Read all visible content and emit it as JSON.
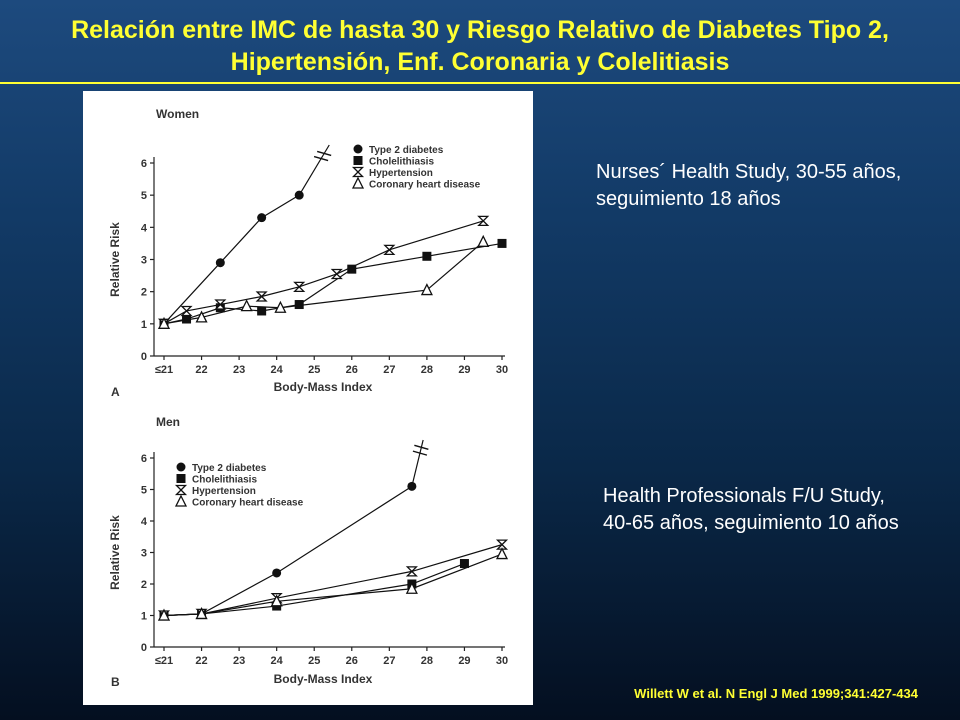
{
  "slide": {
    "title_line1": "Relación entre IMC de hasta 30 y Riesgo Relativo de Diabetes Tipo 2,",
    "title_line2": "Hipertensión, Enf. Coronaria y Colelitiasis",
    "note_women": "Nurses´ Health Study, 30-55 años, seguimiento 18 años",
    "note_men": "Health Professionals F/U Study, 40-65 años, seguimiento 10 años",
    "citation": "Willett W et al. N Engl J Med 1999;341:427-434",
    "colors": {
      "title": "#ffff33",
      "background_top": "#1d4a7e",
      "background_bottom": "#040f20",
      "text": "#ffffff"
    }
  },
  "chart_data": [
    {
      "type": "line",
      "panel": "A",
      "title": "Women",
      "xlabel": "Body-Mass Index",
      "ylabel": "Relative Risk",
      "x_ticks": [
        "≤21",
        "22",
        "23",
        "24",
        "25",
        "26",
        "27",
        "28",
        "29",
        "30"
      ],
      "y_ticks": [
        "0",
        "1",
        "2",
        "3",
        "4",
        "5",
        "6"
      ],
      "ylim": [
        0,
        6
      ],
      "legend_position": "top-right",
      "series": [
        {
          "name": "Type 2 diabetes",
          "marker": "circle",
          "x": [
            21,
            22.5,
            23.6,
            24.6
          ],
          "y": [
            1,
            2.9,
            4.3,
            5.0
          ],
          "break_to_x": 25.4
        },
        {
          "name": "Cholelithiasis",
          "marker": "square",
          "x": [
            21,
            21.6,
            22.5,
            23.6,
            24.6,
            26,
            28,
            30
          ],
          "y": [
            1,
            1.15,
            1.5,
            1.4,
            1.6,
            2.7,
            3.1,
            3.5
          ]
        },
        {
          "name": "Hypertension",
          "marker": "hourglass",
          "x": [
            21,
            21.6,
            22.5,
            23.6,
            24.6,
            25.6,
            27,
            29.5
          ],
          "y": [
            1,
            1.4,
            1.6,
            1.85,
            2.15,
            2.55,
            3.3,
            4.2
          ]
        },
        {
          "name": "Coronary heart disease",
          "marker": "triangle",
          "x": [
            21,
            22,
            23.2,
            24.1,
            28,
            29.5
          ],
          "y": [
            1,
            1.2,
            1.55,
            1.5,
            2.05,
            3.55
          ]
        }
      ]
    },
    {
      "type": "line",
      "panel": "B",
      "title": "Men",
      "xlabel": "Body-Mass Index",
      "ylabel": "Relative Risk",
      "x_ticks": [
        "≤21",
        "22",
        "23",
        "24",
        "25",
        "26",
        "27",
        "28",
        "29",
        "30"
      ],
      "y_ticks": [
        "0",
        "1",
        "2",
        "3",
        "4",
        "5",
        "6"
      ],
      "ylim": [
        0,
        6
      ],
      "legend_position": "top-left",
      "series": [
        {
          "name": "Type 2 diabetes",
          "marker": "circle",
          "x": [
            21,
            22,
            24,
            27.6
          ],
          "y": [
            1,
            1.05,
            2.35,
            5.1
          ],
          "break_to_x": 27.9
        },
        {
          "name": "Cholelithiasis",
          "marker": "square",
          "x": [
            21,
            22,
            24,
            27.6,
            29
          ],
          "y": [
            1,
            1.05,
            1.3,
            2.0,
            2.65
          ]
        },
        {
          "name": "Hypertension",
          "marker": "hourglass",
          "x": [
            21,
            22,
            24,
            27.6,
            30
          ],
          "y": [
            1,
            1.05,
            1.55,
            2.4,
            3.25
          ]
        },
        {
          "name": "Coronary heart disease",
          "marker": "triangle",
          "x": [
            21,
            22,
            24,
            27.6,
            30
          ],
          "y": [
            1,
            1.05,
            1.45,
            1.85,
            2.95
          ]
        }
      ]
    }
  ]
}
